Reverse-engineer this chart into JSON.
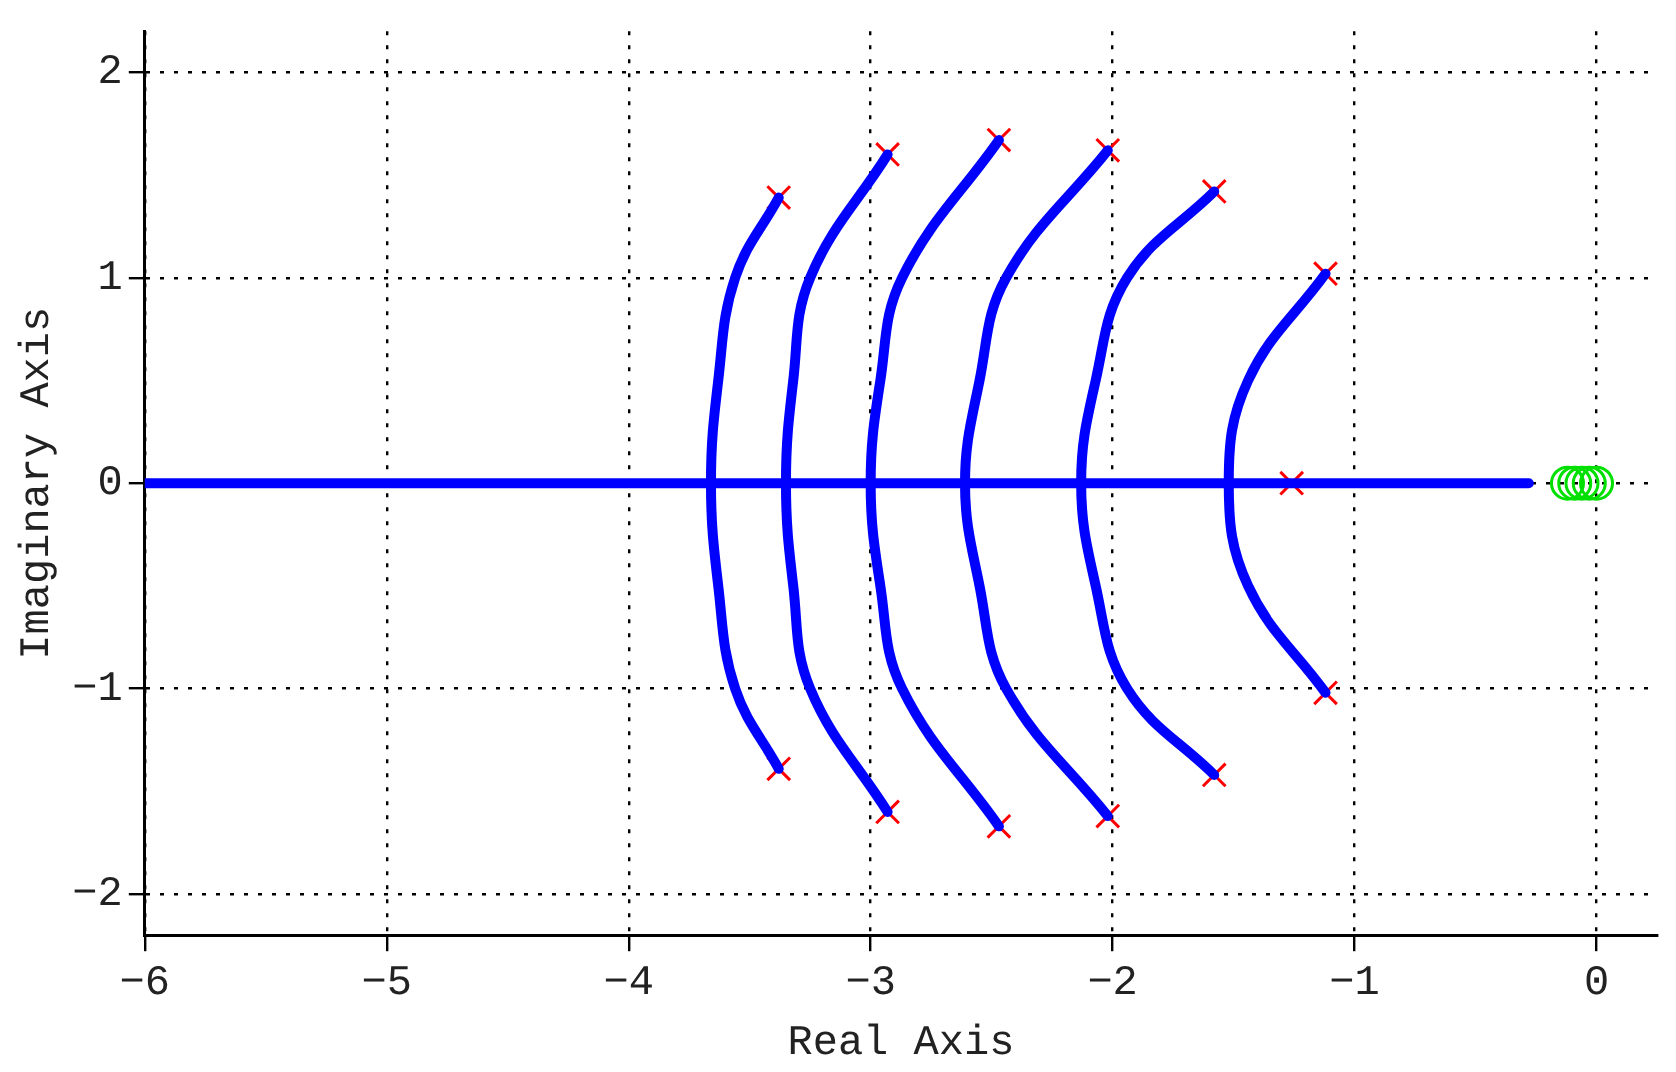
{
  "chart_data": {
    "type": "line",
    "xlabel": "Real Axis",
    "ylabel": "Imaginary Axis",
    "xlim": [
      -6,
      0.25
    ],
    "ylim": [
      -2.2,
      2.2
    ],
    "xticks": [
      -6,
      -5,
      -4,
      -3,
      -2,
      -1,
      0
    ],
    "yticks": [
      -2,
      -1,
      0,
      1,
      2
    ],
    "grid": true,
    "line_style": "solid",
    "legend": false,
    "series": [
      {
        "type": "line",
        "color": "#0000ff",
        "marker": "none",
        "x": [
          -6,
          -0.28
        ],
        "values": [
          0,
          0
        ]
      },
      {
        "type": "line",
        "color": "#0000ff",
        "marker": "none",
        "x": [
          -3.38,
          -3.56,
          -3.63,
          -3.66,
          -3.63,
          -3.56,
          -3.38
        ],
        "values": [
          1.39,
          1,
          0.5,
          0,
          -0.5,
          -1,
          -1.39
        ]
      },
      {
        "type": "line",
        "color": "#0000ff",
        "marker": "none",
        "x": [
          -2.93,
          -3.25,
          -3.32,
          -3.35,
          -3.32,
          -3.25,
          -2.93
        ],
        "values": [
          1.6,
          1,
          0.5,
          0,
          -0.5,
          -1,
          -1.6
        ]
      },
      {
        "type": "line",
        "color": "#0000ff",
        "marker": "none",
        "x": [
          -2.47,
          -2.87,
          -2.96,
          -3.0,
          -2.96,
          -2.87,
          -2.47
        ],
        "values": [
          1.67,
          1,
          0.5,
          0,
          -0.5,
          -1,
          -1.67
        ]
      },
      {
        "type": "line",
        "color": "#0000ff",
        "marker": "none",
        "x": [
          -2.02,
          -2.44,
          -2.55,
          -2.61,
          -2.55,
          -2.44,
          -2.02
        ],
        "values": [
          1.62,
          1,
          0.5,
          0,
          -0.5,
          -1,
          -1.62
        ]
      },
      {
        "type": "line",
        "color": "#0000ff",
        "marker": "none",
        "x": [
          -1.58,
          -1.94,
          -2.07,
          -2.13,
          -2.07,
          -1.94,
          -1.58
        ],
        "values": [
          1.42,
          1,
          0.5,
          0,
          -0.5,
          -1,
          -1.42
        ]
      },
      {
        "type": "line",
        "color": "#0000ff",
        "marker": "none",
        "x": [
          -1.12,
          -1.44,
          -1.52,
          -1.44,
          -1.12
        ],
        "values": [
          1.02,
          0.5,
          0,
          -0.5,
          -1.02
        ]
      },
      {
        "type": "scatter",
        "color": "#ff0000",
        "marker": "cross",
        "x": [
          -3.38,
          -2.93,
          -2.47,
          -2.02,
          -1.58,
          -1.12,
          -1.26,
          -1.12,
          -1.58,
          -2.02,
          -2.47,
          -2.93,
          -3.38
        ],
        "values": [
          1.39,
          1.6,
          1.67,
          1.62,
          1.42,
          1.02,
          0,
          -1.02,
          -1.42,
          -1.62,
          -1.67,
          -1.6,
          -1.39
        ]
      },
      {
        "type": "scatter",
        "color": "#00e000",
        "marker": "circle",
        "x": [
          -0.12,
          -0.09,
          -0.06,
          -0.03,
          0
        ],
        "values": [
          0,
          0,
          0,
          0,
          0
        ]
      }
    ]
  }
}
